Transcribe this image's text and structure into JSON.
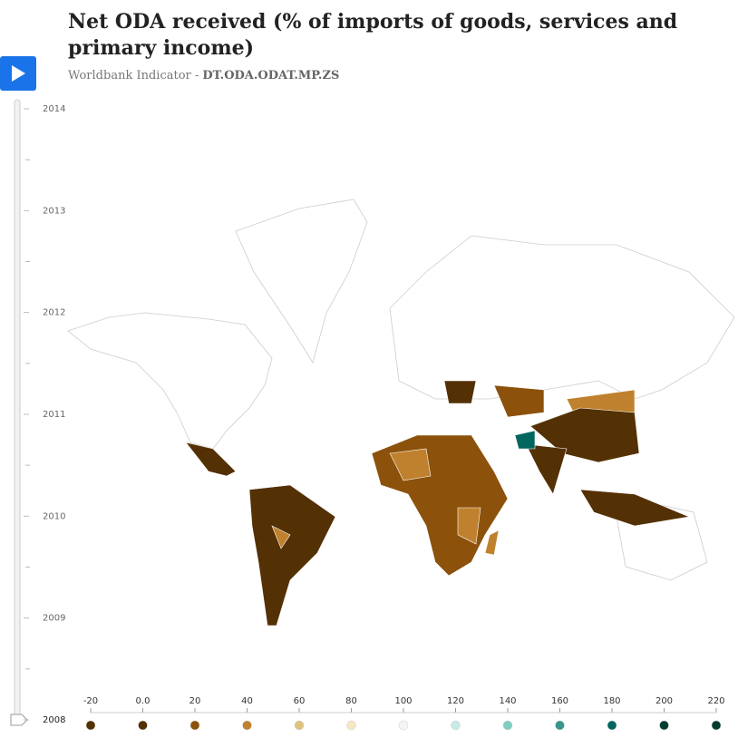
{
  "header": {
    "title": "Net ODA received (% of imports of goods, services and primary income)",
    "subtitle_prefix": "Worldbank Indicator -",
    "indicator_code": "DT.ODA.ODAT.MP.ZS"
  },
  "timeline": {
    "years": [
      2014,
      2013,
      2012,
      2011,
      2010,
      2009,
      2008
    ],
    "current": 2008
  },
  "legend": {
    "stops": [
      -20,
      {
        "value": 0,
        "label": "0.0"
      },
      20,
      40,
      60,
      80,
      100,
      120,
      140,
      160,
      180,
      200,
      220
    ],
    "colors": [
      "#543005",
      "#543005",
      "#8c510a",
      "#bf812d",
      "#dfc27d",
      "#f6e8c3",
      "#f5f5f5",
      "#c7eae5",
      "#80cdc1",
      "#35978f",
      "#01665e",
      "#003c30",
      "#003c30"
    ]
  }
}
